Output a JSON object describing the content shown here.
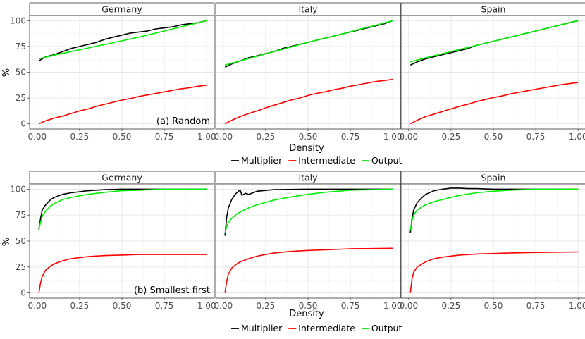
{
  "chart_data": [
    {
      "type": "line",
      "annotation": "(a) Random",
      "xlabel": "Density",
      "ylabel": "%",
      "xlim": [
        0,
        1
      ],
      "ylim": [
        0,
        100
      ],
      "x_ticks": [
        "0.00",
        "0.25",
        "0.50",
        "0.75",
        "1.00"
      ],
      "y_ticks": [
        "0",
        "25",
        "50",
        "75",
        "100"
      ],
      "legend": [
        {
          "name": "Multiplier",
          "color": "#000000"
        },
        {
          "name": "Intermediate",
          "color": "#ff0000"
        },
        {
          "name": "Output",
          "color": "#00ee00"
        }
      ],
      "panels": [
        {
          "title": "Germany",
          "series": [
            {
              "name": "Multiplier",
              "x": [
                0.01,
                0.05,
                0.1,
                0.15,
                0.2,
                0.25,
                0.3,
                0.35,
                0.4,
                0.45,
                0.5,
                0.55,
                0.6,
                0.65,
                0.7,
                0.75,
                0.8,
                0.85,
                0.9,
                0.95,
                1.0
              ],
              "values": [
                61,
                65,
                67,
                70,
                73,
                75,
                77,
                79,
                82,
                84,
                86,
                88,
                89,
                90,
                92,
                93,
                94,
                96,
                97,
                98,
                100
              ]
            },
            {
              "name": "Intermediate",
              "x": [
                0.01,
                0.05,
                0.1,
                0.15,
                0.2,
                0.25,
                0.3,
                0.35,
                0.4,
                0.45,
                0.5,
                0.55,
                0.6,
                0.65,
                0.7,
                0.75,
                0.8,
                0.85,
                0.9,
                0.95,
                1.0
              ],
              "values": [
                0,
                3,
                5.5,
                7.5,
                10,
                12.5,
                14.5,
                17,
                19,
                21,
                23,
                24.5,
                26.5,
                28,
                29.5,
                31,
                32.5,
                34,
                35,
                36.5,
                37.5
              ]
            },
            {
              "name": "Output",
              "x": [
                0.01,
                0.1,
                0.2,
                0.3,
                0.4,
                0.5,
                0.6,
                0.7,
                0.8,
                0.9,
                1.0
              ],
              "values": [
                63,
                66.5,
                70,
                73.5,
                77,
                80.5,
                84,
                88,
                92,
                96,
                100
              ]
            }
          ]
        },
        {
          "title": "Italy",
          "series": [
            {
              "name": "Multiplier",
              "x": [
                0.01,
                0.05,
                0.1,
                0.15,
                0.2,
                0.25,
                0.3,
                0.35,
                0.4,
                0.45,
                0.5,
                0.55,
                0.6,
                0.65,
                0.7,
                0.75,
                0.8,
                0.85,
                0.9,
                0.95,
                1.0
              ],
              "values": [
                55,
                58,
                61,
                64,
                66,
                68,
                70,
                73,
                75,
                77,
                79,
                81,
                83,
                85,
                87,
                89,
                91,
                93,
                95,
                97,
                100
              ]
            },
            {
              "name": "Intermediate",
              "x": [
                0.01,
                0.05,
                0.1,
                0.15,
                0.2,
                0.25,
                0.3,
                0.35,
                0.4,
                0.45,
                0.5,
                0.55,
                0.6,
                0.65,
                0.7,
                0.75,
                0.8,
                0.85,
                0.9,
                0.95,
                1.0
              ],
              "values": [
                0,
                3.5,
                7,
                10,
                12.5,
                15.5,
                18,
                20.5,
                23,
                25,
                27.5,
                29.5,
                31,
                33,
                34.5,
                36.5,
                38,
                39.5,
                41,
                42,
                43
              ]
            },
            {
              "name": "Output",
              "x": [
                0.01,
                0.1,
                0.2,
                0.3,
                0.4,
                0.5,
                0.6,
                0.7,
                0.8,
                0.9,
                1.0
              ],
              "values": [
                57,
                61,
                65.5,
                70,
                74.5,
                79,
                83,
                87,
                91.5,
                95.5,
                100
              ]
            }
          ]
        },
        {
          "title": "Spain",
          "series": [
            {
              "name": "Multiplier",
              "x": [
                0.01,
                0.05,
                0.1,
                0.15,
                0.2,
                0.25,
                0.3,
                0.35,
                0.4,
                0.45,
                0.5,
                0.55,
                0.6,
                0.65,
                0.7,
                0.75,
                0.8,
                0.85,
                0.9,
                0.95,
                1.0
              ],
              "values": [
                57,
                60,
                63,
                65,
                67,
                69,
                71,
                73,
                76,
                78,
                80,
                82,
                84,
                86,
                88,
                90,
                92,
                94,
                96,
                98,
                100
              ]
            },
            {
              "name": "Intermediate",
              "x": [
                0.01,
                0.05,
                0.1,
                0.15,
                0.2,
                0.25,
                0.3,
                0.35,
                0.4,
                0.45,
                0.5,
                0.55,
                0.6,
                0.65,
                0.7,
                0.75,
                0.8,
                0.85,
                0.9,
                0.95,
                1.0
              ],
              "values": [
                0,
                3.5,
                7,
                9.5,
                12,
                14.5,
                17,
                19,
                21.5,
                23.5,
                25.5,
                27,
                29,
                30.5,
                32,
                33.5,
                35,
                36.5,
                38,
                39,
                40
              ]
            },
            {
              "name": "Output",
              "x": [
                0.01,
                0.1,
                0.2,
                0.3,
                0.4,
                0.5,
                0.6,
                0.7,
                0.8,
                0.9,
                1.0
              ],
              "values": [
                60,
                64,
                68,
                72,
                76,
                80,
                84,
                88,
                92,
                96,
                100
              ]
            }
          ]
        }
      ]
    },
    {
      "type": "line",
      "annotation": "(b) Smallest first",
      "xlabel": "Density",
      "ylabel": "%",
      "xlim": [
        0,
        1
      ],
      "ylim": [
        0,
        100
      ],
      "x_ticks": [
        "0.00",
        "0.25",
        "0.50",
        "0.75",
        "1.00"
      ],
      "y_ticks": [
        "0",
        "25",
        "50",
        "75",
        "100"
      ],
      "legend": [
        {
          "name": "Multiplier",
          "color": "#000000"
        },
        {
          "name": "Intermediate",
          "color": "#ff0000"
        },
        {
          "name": "Output",
          "color": "#00ee00"
        }
      ],
      "panels": [
        {
          "title": "Germany",
          "series": [
            {
              "name": "Multiplier",
              "x": [
                0.01,
                0.02,
                0.03,
                0.05,
                0.08,
                0.1,
                0.15,
                0.2,
                0.3,
                0.4,
                0.5,
                0.6,
                0.75,
                1.0
              ],
              "values": [
                61,
                72,
                80,
                85,
                90,
                92,
                95,
                96.5,
                98.5,
                99.5,
                100,
                100,
                100,
                100
              ]
            },
            {
              "name": "Intermediate",
              "x": [
                0.01,
                0.02,
                0.03,
                0.05,
                0.08,
                0.1,
                0.15,
                0.2,
                0.3,
                0.4,
                0.5,
                0.6,
                0.75,
                1.0
              ],
              "values": [
                0,
                10,
                16,
                22,
                26,
                28,
                31,
                33,
                35,
                36,
                36.5,
                37,
                37,
                37
              ]
            },
            {
              "name": "Output",
              "x": [
                0.01,
                0.02,
                0.03,
                0.05,
                0.08,
                0.1,
                0.15,
                0.2,
                0.3,
                0.4,
                0.5,
                0.6,
                0.75,
                1.0
              ],
              "values": [
                62,
                68,
                74,
                79,
                84,
                86,
                90,
                92,
                95,
                97,
                98.5,
                99,
                100,
                100
              ]
            }
          ]
        },
        {
          "title": "Italy",
          "series": [
            {
              "name": "Multiplier",
              "x": [
                0.01,
                0.02,
                0.03,
                0.05,
                0.07,
                0.09,
                0.1,
                0.11,
                0.13,
                0.15,
                0.2,
                0.3,
                0.5,
                0.75,
                1.0
              ],
              "values": [
                55,
                73,
                82,
                90,
                95,
                98,
                99,
                94,
                96,
                95,
                98,
                99.5,
                100,
                100,
                100
              ]
            },
            {
              "name": "Intermediate",
              "x": [
                0.01,
                0.02,
                0.03,
                0.05,
                0.08,
                0.1,
                0.15,
                0.2,
                0.3,
                0.4,
                0.5,
                0.6,
                0.75,
                1.0
              ],
              "values": [
                0,
                11,
                18,
                24,
                28,
                30,
                33,
                35.5,
                38.5,
                40,
                41,
                41.5,
                42.5,
                43
              ]
            },
            {
              "name": "Output",
              "x": [
                0.01,
                0.02,
                0.03,
                0.05,
                0.08,
                0.1,
                0.15,
                0.2,
                0.3,
                0.4,
                0.5,
                0.6,
                0.75,
                1.0
              ],
              "values": [
                58,
                64,
                68,
                72,
                76,
                78,
                82,
                85,
                89.5,
                92.5,
                95,
                97,
                99,
                100
              ]
            }
          ]
        },
        {
          "title": "Spain",
          "series": [
            {
              "name": "Multiplier",
              "x": [
                0.01,
                0.02,
                0.03,
                0.05,
                0.08,
                0.1,
                0.15,
                0.2,
                0.25,
                0.3,
                0.35,
                0.4,
                0.5,
                0.75,
                1.0
              ],
              "values": [
                58,
                72,
                80,
                87,
                92,
                95,
                98.5,
                100,
                101,
                101,
                100.5,
                100.5,
                100,
                100,
                100
              ]
            },
            {
              "name": "Intermediate",
              "x": [
                0.01,
                0.02,
                0.03,
                0.05,
                0.08,
                0.1,
                0.15,
                0.2,
                0.3,
                0.4,
                0.5,
                0.6,
                0.75,
                1.0
              ],
              "values": [
                0,
                14,
                20,
                25,
                28,
                30,
                33,
                34.5,
                36.5,
                37.5,
                38,
                38.5,
                39,
                39.5
              ]
            },
            {
              "name": "Output",
              "x": [
                0.01,
                0.02,
                0.03,
                0.05,
                0.08,
                0.1,
                0.15,
                0.2,
                0.3,
                0.4,
                0.5,
                0.6,
                0.75,
                1.0
              ],
              "values": [
                60,
                70,
                75,
                80,
                83,
                85,
                88,
                90,
                94,
                96.5,
                98,
                99,
                100,
                100
              ]
            }
          ]
        }
      ]
    }
  ]
}
